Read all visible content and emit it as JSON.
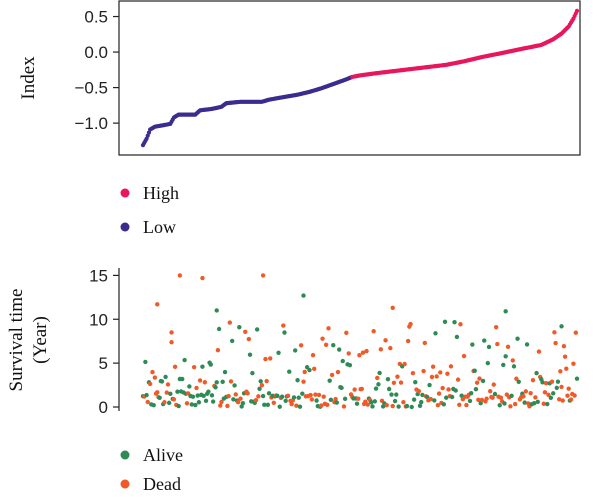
{
  "chart_data": [
    {
      "type": "scatter",
      "ylabel": "Index",
      "ylim": [
        -1.35,
        0.62
      ],
      "yticks": [
        -1.0,
        -0.5,
        0.0,
        0.5
      ],
      "ytick_labels": [
        "−1.0",
        "−0.5",
        "0.0",
        "0.5"
      ],
      "n_patients": 366,
      "cutoff_index": 176,
      "legend": [
        {
          "label": "High",
          "color": "#e8175d"
        },
        {
          "label": "Low",
          "color": "#3a2d8f"
        }
      ],
      "risk_curve": [
        [
          0,
          -1.31
        ],
        [
          3,
          -1.22
        ],
        [
          6,
          -1.09
        ],
        [
          10,
          -1.05
        ],
        [
          17,
          -1.03
        ],
        [
          23,
          -1.01
        ],
        [
          26,
          -0.92
        ],
        [
          30,
          -0.88
        ],
        [
          44,
          -0.88
        ],
        [
          48,
          -0.82
        ],
        [
          58,
          -0.8
        ],
        [
          66,
          -0.77
        ],
        [
          70,
          -0.72
        ],
        [
          82,
          -0.7
        ],
        [
          100,
          -0.7
        ],
        [
          106,
          -0.67
        ],
        [
          116,
          -0.64
        ],
        [
          130,
          -0.6
        ],
        [
          140,
          -0.56
        ],
        [
          150,
          -0.51
        ],
        [
          160,
          -0.45
        ],
        [
          170,
          -0.39
        ],
        [
          176,
          -0.35
        ],
        [
          182,
          -0.33
        ],
        [
          195,
          -0.3
        ],
        [
          215,
          -0.26
        ],
        [
          235,
          -0.22
        ],
        [
          255,
          -0.18
        ],
        [
          270,
          -0.13
        ],
        [
          285,
          -0.07
        ],
        [
          300,
          -0.02
        ],
        [
          320,
          0.05
        ],
        [
          335,
          0.1
        ],
        [
          345,
          0.18
        ],
        [
          352,
          0.26
        ],
        [
          358,
          0.36
        ],
        [
          362,
          0.47
        ],
        [
          365,
          0.58
        ]
      ]
    },
    {
      "type": "scatter",
      "ylabel": "Survival time (Year)",
      "ylabel_lines": [
        "Survival time",
        "(Year)"
      ],
      "ylim": [
        0,
        15.5
      ],
      "yticks": [
        0,
        5,
        10,
        15
      ],
      "ytick_labels": [
        "0",
        "5",
        "10",
        "15"
      ],
      "n_patients": 366,
      "legend": [
        {
          "label": "Alive",
          "color": "#2e8b57"
        },
        {
          "label": "Dead",
          "color": "#f05a28"
        }
      ],
      "points": {
        "x": [],
        "y": [],
        "status": []
      },
      "highlights": [
        {
          "x": 31,
          "y": 15.0,
          "status": "dead"
        },
        {
          "x": 50,
          "y": 14.7,
          "status": "dead"
        },
        {
          "x": 101,
          "y": 15.0,
          "status": "dead"
        },
        {
          "x": 12,
          "y": 11.7,
          "status": "dead"
        },
        {
          "x": 135,
          "y": 12.7,
          "status": "alive"
        },
        {
          "x": 210,
          "y": 11.3,
          "status": "dead"
        },
        {
          "x": 305,
          "y": 10.9,
          "status": "alive"
        },
        {
          "x": 62,
          "y": 11.0,
          "status": "alive"
        },
        {
          "x": 352,
          "y": 9.2,
          "status": "alive"
        },
        {
          "x": 24,
          "y": 8.5,
          "status": "dead"
        }
      ]
    }
  ]
}
